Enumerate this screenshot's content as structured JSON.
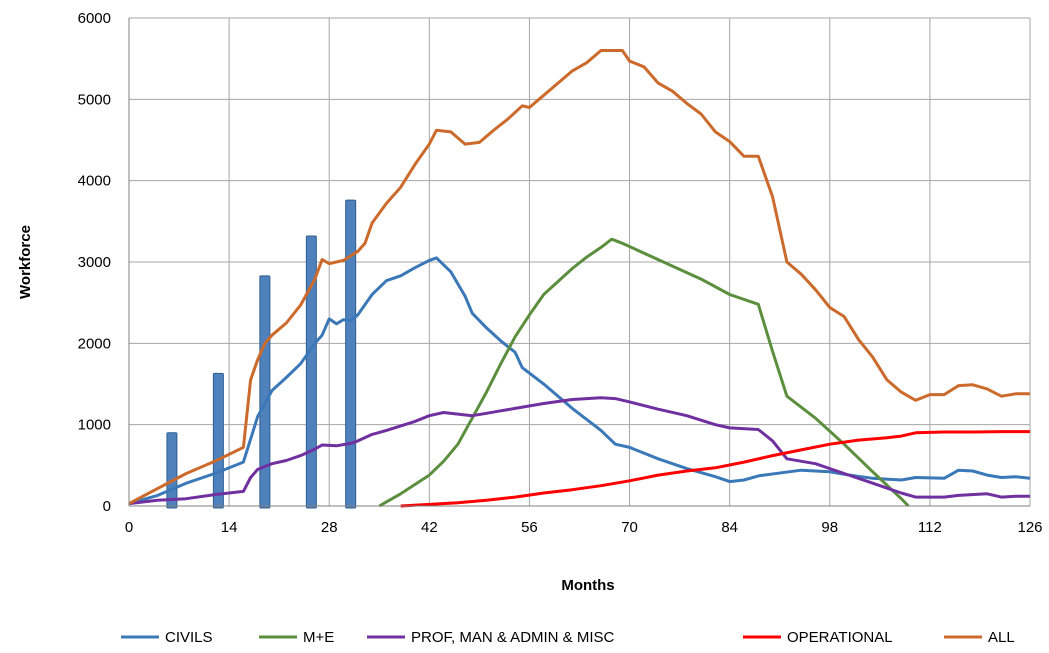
{
  "chart_data": {
    "type": "line",
    "title": "",
    "xlabel": "Months",
    "ylabel": "Workforce",
    "xlim": [
      0,
      126
    ],
    "ylim": [
      0,
      6000
    ],
    "xticks": [
      0,
      14,
      28,
      42,
      56,
      70,
      84,
      98,
      112,
      126
    ],
    "yticks": [
      0,
      1000,
      2000,
      3000,
      4000,
      5000,
      6000
    ],
    "grid": true,
    "legend_position": "bottom",
    "bars": {
      "color": "#4f81bd",
      "x": [
        6,
        12.5,
        19,
        25.5,
        31
      ],
      "values": [
        900,
        1630,
        2830,
        3320,
        3760
      ]
    },
    "series": [
      {
        "name": "CIVILS",
        "color": "#3a78b8",
        "points": [
          [
            0,
            30
          ],
          [
            4,
            130
          ],
          [
            8,
            280
          ],
          [
            12,
            400
          ],
          [
            16,
            540
          ],
          [
            18,
            1100
          ],
          [
            20,
            1420
          ],
          [
            22,
            1580
          ],
          [
            24,
            1750
          ],
          [
            26,
            2000
          ],
          [
            27,
            2100
          ],
          [
            28,
            2300
          ],
          [
            29,
            2240
          ],
          [
            30,
            2290
          ],
          [
            31,
            2280
          ],
          [
            32,
            2350
          ],
          [
            34,
            2600
          ],
          [
            36,
            2770
          ],
          [
            38,
            2830
          ],
          [
            40,
            2930
          ],
          [
            42,
            3020
          ],
          [
            43,
            3050
          ],
          [
            45,
            2880
          ],
          [
            47,
            2580
          ],
          [
            48,
            2370
          ],
          [
            50,
            2190
          ],
          [
            52,
            2030
          ],
          [
            54,
            1890
          ],
          [
            55,
            1700
          ],
          [
            58,
            1500
          ],
          [
            62,
            1200
          ],
          [
            66,
            930
          ],
          [
            68,
            760
          ],
          [
            70,
            720
          ],
          [
            74,
            580
          ],
          [
            78,
            460
          ],
          [
            82,
            360
          ],
          [
            84,
            300
          ],
          [
            86,
            320
          ],
          [
            88,
            370
          ],
          [
            94,
            440
          ],
          [
            98,
            420
          ],
          [
            100,
            390
          ],
          [
            104,
            340
          ],
          [
            108,
            320
          ],
          [
            110,
            350
          ],
          [
            114,
            340
          ],
          [
            116,
            440
          ],
          [
            118,
            430
          ],
          [
            120,
            380
          ],
          [
            122,
            350
          ],
          [
            124,
            360
          ],
          [
            126,
            340
          ]
        ]
      },
      {
        "name": "M+E",
        "color": "#5b8f3e",
        "points": [
          [
            35,
            0
          ],
          [
            38,
            150
          ],
          [
            42,
            380
          ],
          [
            44,
            550
          ],
          [
            46,
            760
          ],
          [
            48,
            1080
          ],
          [
            50,
            1400
          ],
          [
            52,
            1750
          ],
          [
            54,
            2080
          ],
          [
            56,
            2350
          ],
          [
            58,
            2600
          ],
          [
            60,
            2760
          ],
          [
            62,
            2920
          ],
          [
            64,
            3060
          ],
          [
            66,
            3180
          ],
          [
            67.5,
            3280
          ],
          [
            69,
            3230
          ],
          [
            72,
            3110
          ],
          [
            76,
            2950
          ],
          [
            80,
            2790
          ],
          [
            84,
            2600
          ],
          [
            88,
            2480
          ],
          [
            90,
            1900
          ],
          [
            92,
            1350
          ],
          [
            96,
            1080
          ],
          [
            100,
            760
          ],
          [
            104,
            420
          ],
          [
            108,
            90
          ],
          [
            109,
            0
          ]
        ]
      },
      {
        "name": "PROF, MAN & ADMIN & MISC",
        "color": "#7030a0",
        "points": [
          [
            0,
            30
          ],
          [
            4,
            70
          ],
          [
            8,
            90
          ],
          [
            12,
            140
          ],
          [
            16,
            180
          ],
          [
            17,
            350
          ],
          [
            18,
            450
          ],
          [
            20,
            520
          ],
          [
            22,
            560
          ],
          [
            24,
            620
          ],
          [
            26,
            700
          ],
          [
            27,
            750
          ],
          [
            29,
            740
          ],
          [
            31,
            770
          ],
          [
            32,
            800
          ],
          [
            34,
            880
          ],
          [
            36,
            930
          ],
          [
            40,
            1040
          ],
          [
            42,
            1110
          ],
          [
            44,
            1150
          ],
          [
            48,
            1110
          ],
          [
            50,
            1140
          ],
          [
            52,
            1170
          ],
          [
            54,
            1200
          ],
          [
            58,
            1260
          ],
          [
            62,
            1310
          ],
          [
            66,
            1330
          ],
          [
            68,
            1320
          ],
          [
            70,
            1280
          ],
          [
            74,
            1190
          ],
          [
            78,
            1110
          ],
          [
            82,
            1000
          ],
          [
            84,
            960
          ],
          [
            88,
            940
          ],
          [
            90,
            800
          ],
          [
            92,
            580
          ],
          [
            96,
            520
          ],
          [
            100,
            400
          ],
          [
            104,
            280
          ],
          [
            108,
            160
          ],
          [
            110,
            110
          ],
          [
            114,
            110
          ],
          [
            116,
            130
          ],
          [
            120,
            150
          ],
          [
            122,
            110
          ],
          [
            124,
            120
          ],
          [
            126,
            120
          ]
        ]
      },
      {
        "name": "OPERATIONAL",
        "color": "#ff0000",
        "points": [
          [
            38,
            0
          ],
          [
            42,
            20
          ],
          [
            46,
            40
          ],
          [
            50,
            70
          ],
          [
            54,
            110
          ],
          [
            58,
            160
          ],
          [
            62,
            200
          ],
          [
            66,
            250
          ],
          [
            70,
            310
          ],
          [
            74,
            380
          ],
          [
            78,
            430
          ],
          [
            82,
            470
          ],
          [
            86,
            540
          ],
          [
            90,
            620
          ],
          [
            94,
            690
          ],
          [
            98,
            760
          ],
          [
            102,
            810
          ],
          [
            106,
            840
          ],
          [
            108,
            860
          ],
          [
            110,
            900
          ],
          [
            114,
            910
          ],
          [
            118,
            910
          ],
          [
            122,
            915
          ],
          [
            126,
            915
          ]
        ]
      },
      {
        "name": "ALL",
        "color": "#cc6a2c",
        "points": [
          [
            0,
            30
          ],
          [
            8,
            400
          ],
          [
            12,
            550
          ],
          [
            16,
            720
          ],
          [
            17,
            1550
          ],
          [
            18,
            1800
          ],
          [
            19,
            2000
          ],
          [
            20,
            2100
          ],
          [
            22,
            2250
          ],
          [
            24,
            2470
          ],
          [
            26,
            2790
          ],
          [
            27,
            3030
          ],
          [
            28,
            2980
          ],
          [
            30,
            3020
          ],
          [
            32,
            3130
          ],
          [
            33,
            3230
          ],
          [
            34,
            3480
          ],
          [
            36,
            3720
          ],
          [
            38,
            3920
          ],
          [
            40,
            4200
          ],
          [
            42,
            4450
          ],
          [
            43,
            4620
          ],
          [
            45,
            4600
          ],
          [
            47,
            4450
          ],
          [
            49,
            4470
          ],
          [
            51,
            4620
          ],
          [
            53,
            4760
          ],
          [
            55,
            4920
          ],
          [
            56,
            4900
          ],
          [
            58,
            5050
          ],
          [
            60,
            5200
          ],
          [
            62,
            5350
          ],
          [
            64,
            5450
          ],
          [
            66,
            5600
          ],
          [
            68,
            5600
          ],
          [
            69,
            5600
          ],
          [
            70,
            5470
          ],
          [
            72,
            5400
          ],
          [
            74,
            5200
          ],
          [
            76,
            5100
          ],
          [
            78,
            4950
          ],
          [
            80,
            4820
          ],
          [
            82,
            4600
          ],
          [
            84,
            4480
          ],
          [
            86,
            4300
          ],
          [
            88,
            4300
          ],
          [
            90,
            3800
          ],
          [
            92,
            3000
          ],
          [
            94,
            2850
          ],
          [
            96,
            2660
          ],
          [
            98,
            2440
          ],
          [
            100,
            2330
          ],
          [
            102,
            2050
          ],
          [
            104,
            1830
          ],
          [
            106,
            1550
          ],
          [
            108,
            1400
          ],
          [
            110,
            1300
          ],
          [
            112,
            1370
          ],
          [
            114,
            1370
          ],
          [
            116,
            1480
          ],
          [
            118,
            1490
          ],
          [
            120,
            1440
          ],
          [
            122,
            1350
          ],
          [
            124,
            1380
          ],
          [
            126,
            1380
          ]
        ]
      }
    ]
  }
}
